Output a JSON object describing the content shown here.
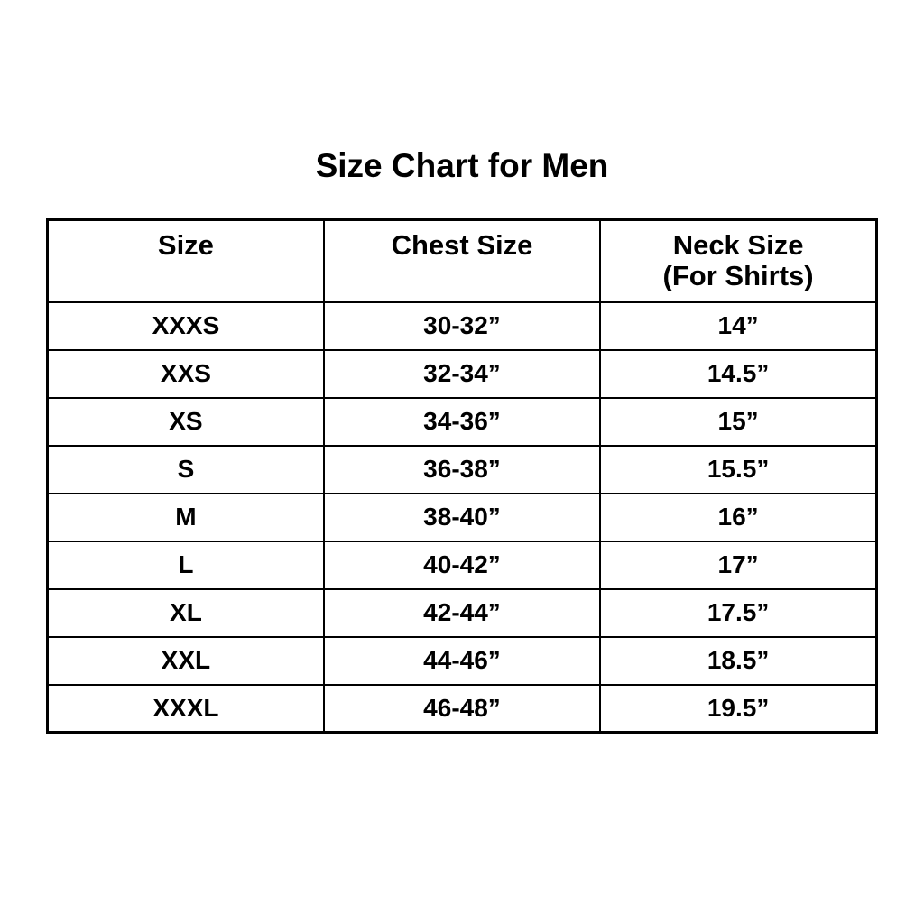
{
  "title": "Size Chart for Men",
  "colors": {
    "background": "#ffffff",
    "border": "#000000",
    "text": "#000000"
  },
  "table": {
    "headers": [
      {
        "line1": "Size",
        "line2": ""
      },
      {
        "line1": "Chest Size",
        "line2": ""
      },
      {
        "line1": "Neck Size",
        "line2": "(For Shirts)"
      }
    ],
    "rows": [
      {
        "size": "XXXS",
        "chest": "30-32”",
        "neck": "14”"
      },
      {
        "size": "XXS",
        "chest": "32-34”",
        "neck": "14.5”"
      },
      {
        "size": "XS",
        "chest": "34-36”",
        "neck": "15”"
      },
      {
        "size": "S",
        "chest": "36-38”",
        "neck": "15.5”"
      },
      {
        "size": "M",
        "chest": "38-40”",
        "neck": "16”"
      },
      {
        "size": "L",
        "chest": "40-42”",
        "neck": "17”"
      },
      {
        "size": "XL",
        "chest": "42-44”",
        "neck": "17.5”"
      },
      {
        "size": "XXL",
        "chest": "44-46”",
        "neck": "18.5”"
      },
      {
        "size": "XXXL",
        "chest": "46-48”",
        "neck": "19.5”"
      }
    ]
  },
  "chart_data": {
    "type": "table",
    "title": "Size Chart for Men",
    "columns": [
      "Size",
      "Chest Size",
      "Neck Size (For Shirts)"
    ],
    "rows": [
      [
        "XXXS",
        "30-32”",
        "14”"
      ],
      [
        "XXS",
        "32-34”",
        "14.5”"
      ],
      [
        "XS",
        "34-36”",
        "15”"
      ],
      [
        "S",
        "36-38”",
        "15.5”"
      ],
      [
        "M",
        "38-40”",
        "16”"
      ],
      [
        "L",
        "40-42”",
        "17”"
      ],
      [
        "XL",
        "42-44”",
        "17.5”"
      ],
      [
        "XXL",
        "44-46”",
        "18.5”"
      ],
      [
        "XXXL",
        "46-48”",
        "19.5”"
      ]
    ]
  }
}
